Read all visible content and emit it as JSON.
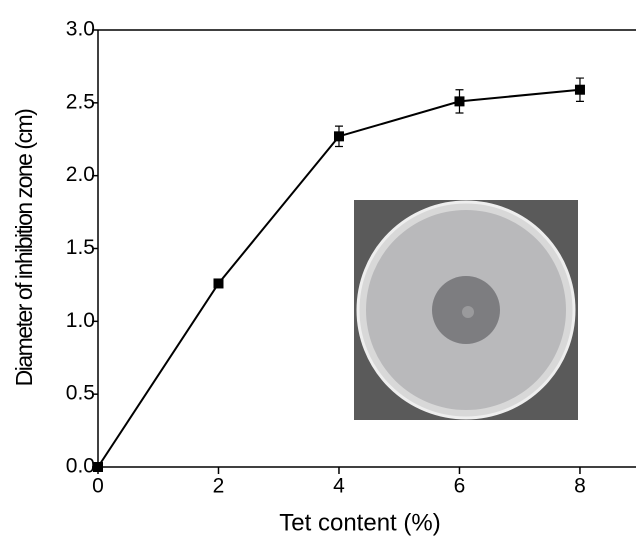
{
  "chart_data": {
    "type": "line",
    "x_label": "Tet content (%)",
    "y_label": "Diameter of inhibition zone (cm)",
    "x": [
      0,
      2,
      4,
      6,
      8
    ],
    "values": [
      0,
      1.26,
      2.27,
      2.51,
      2.59
    ],
    "errors": [
      0,
      0.02,
      0.07,
      0.08,
      0.08
    ],
    "color": "#000000",
    "xlim": [
      0,
      8.93
    ],
    "xticks": [
      0,
      2,
      4,
      6,
      8
    ],
    "ylim": [
      0,
      3.0
    ],
    "yticks": [
      {
        "value": 0,
        "label": "0.0"
      },
      {
        "value": 0.5,
        "label": "0.5"
      },
      {
        "value": 1,
        "label": "1.0"
      },
      {
        "value": 1.5,
        "label": "1.5"
      },
      {
        "value": 2,
        "label": "2.0"
      },
      {
        "value": 2.5,
        "label": "2.5"
      },
      {
        "value": 3,
        "label": "3.0"
      }
    ]
  }
}
